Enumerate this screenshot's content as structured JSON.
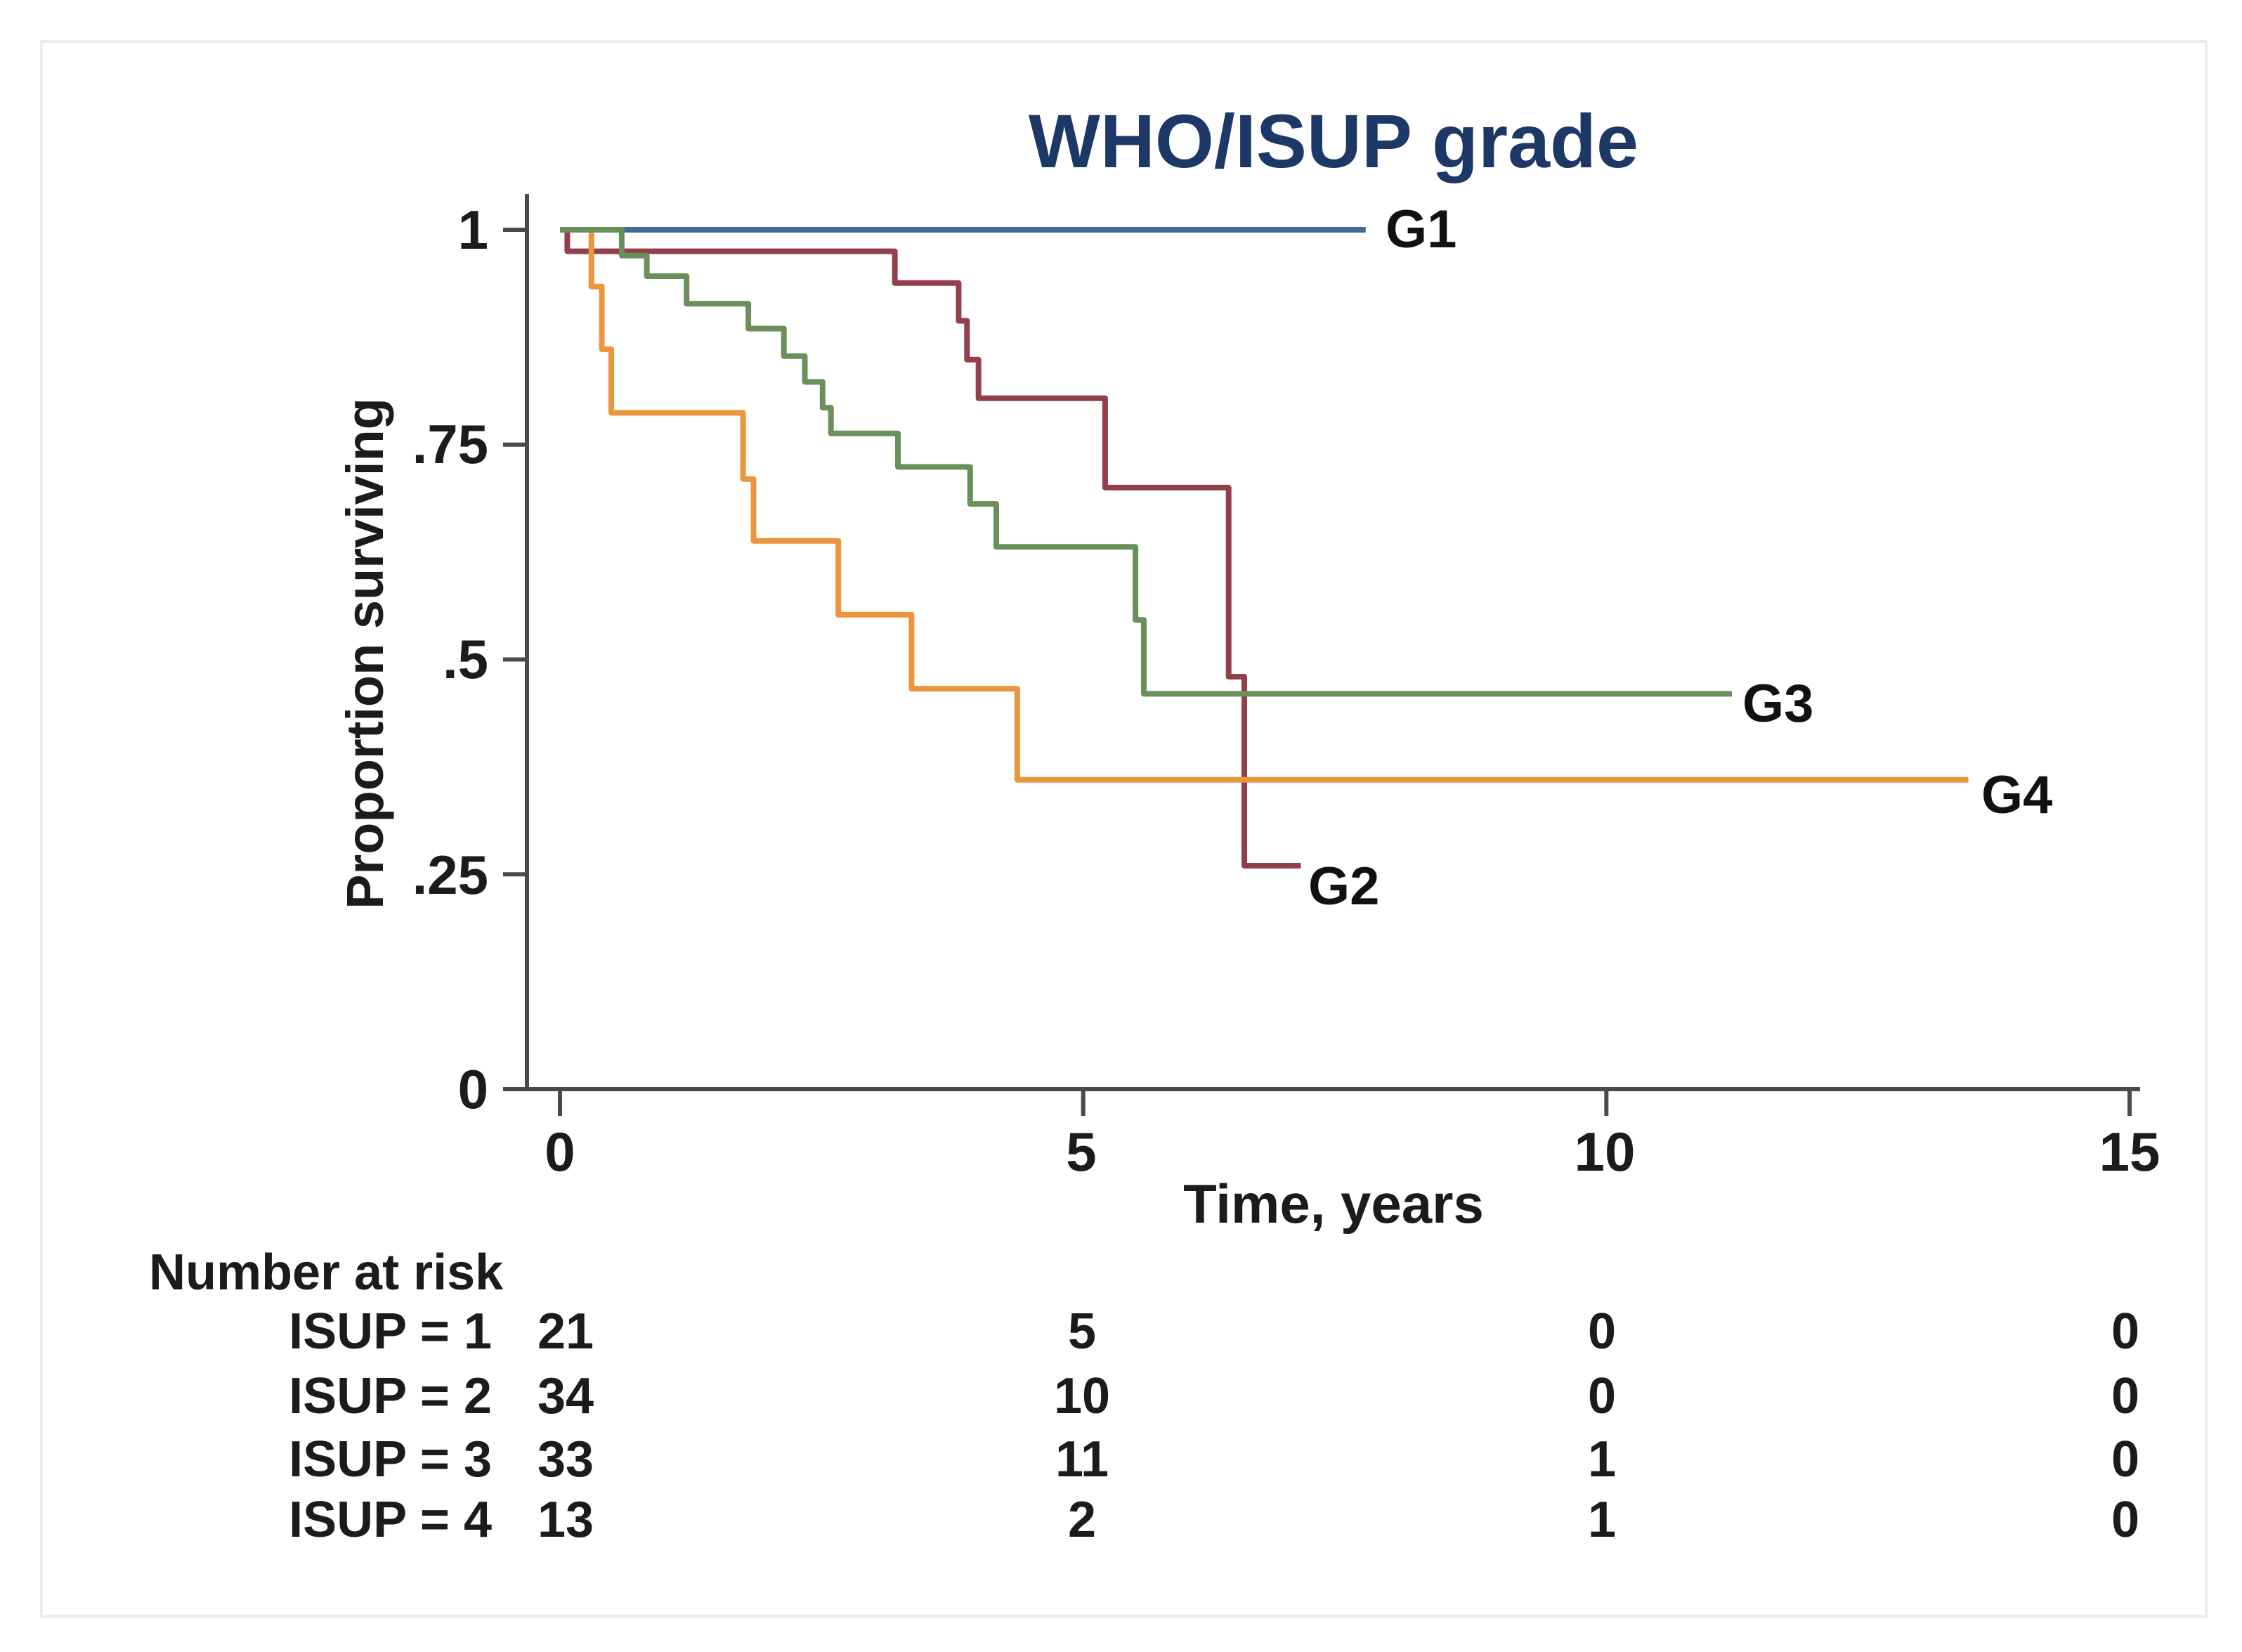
{
  "figure": {
    "background": "#ffffff",
    "frame_color": "#e8edf1",
    "axis_color": "#4a4a4a",
    "text_color": "#1b1b1b",
    "title_color": "#1d3766"
  },
  "chart_data": {
    "type": "line",
    "subtype": "kaplan-meier-step-survival",
    "title": "WHO/ISUP grade",
    "xlabel": "Time, years",
    "ylabel": "Proportion surviving",
    "xlim": [
      0,
      15
    ],
    "ylim": [
      0,
      1
    ],
    "grid": false,
    "legend_position": "end-of-line-labels",
    "x_ticks": [
      {
        "value": 0,
        "label": "0"
      },
      {
        "value": 5,
        "label": "5"
      },
      {
        "value": 10,
        "label": "10"
      },
      {
        "value": 15,
        "label": "15"
      }
    ],
    "y_ticks": [
      {
        "value": 1,
        "label": "1"
      },
      {
        "value": 0.75,
        "label": ".75"
      },
      {
        "value": 0.5,
        "label": ".5"
      },
      {
        "value": 0.25,
        "label": ".25"
      },
      {
        "value": 0,
        "label": "0"
      }
    ],
    "series": [
      {
        "name": "G1",
        "group": "WHO/ISUP grade 1",
        "color": "#3f6a93",
        "steps": [
          [
            0,
            1.0
          ],
          [
            7.7,
            1.0
          ]
        ]
      },
      {
        "name": "G2",
        "group": "WHO/ISUP grade 2",
        "color": "#933f4a",
        "steps": [
          [
            0,
            1.0
          ],
          [
            0.07,
            0.975
          ],
          [
            3.2,
            0.938
          ],
          [
            3.81,
            0.894
          ],
          [
            3.89,
            0.849
          ],
          [
            4.0,
            0.804
          ],
          [
            5.21,
            0.7
          ],
          [
            6.39,
            0.48
          ],
          [
            6.54,
            0.26
          ],
          [
            7.08,
            0.26
          ]
        ]
      },
      {
        "name": "G3",
        "group": "WHO/ISUP grade 3",
        "color": "#6b8f5a",
        "steps": [
          [
            0,
            1.0
          ],
          [
            0.59,
            0.97
          ],
          [
            0.83,
            0.946
          ],
          [
            1.21,
            0.914
          ],
          [
            1.8,
            0.885
          ],
          [
            2.14,
            0.853
          ],
          [
            2.34,
            0.823
          ],
          [
            2.51,
            0.793
          ],
          [
            2.59,
            0.763
          ],
          [
            3.23,
            0.724
          ],
          [
            3.92,
            0.681
          ],
          [
            4.17,
            0.631
          ],
          [
            5.5,
            0.546
          ],
          [
            5.58,
            0.46
          ],
          [
            11.2,
            0.46
          ]
        ]
      },
      {
        "name": "G4",
        "group": "WHO/ISUP grade 4",
        "color": "#e9963e",
        "steps": [
          [
            0,
            1.0
          ],
          [
            0.3,
            0.934
          ],
          [
            0.4,
            0.861
          ],
          [
            0.49,
            0.787
          ],
          [
            1.75,
            0.71
          ],
          [
            1.85,
            0.638
          ],
          [
            2.66,
            0.552
          ],
          [
            3.36,
            0.466
          ],
          [
            4.37,
            0.36
          ],
          [
            13.46,
            0.36
          ]
        ]
      }
    ]
  },
  "at_risk": {
    "header": "Number at risk",
    "time_points": [
      "0",
      "5",
      "10",
      "15"
    ],
    "rows": [
      {
        "label": "ISUP = 1",
        "values": [
          "21",
          "5",
          "0",
          "0"
        ]
      },
      {
        "label": "ISUP = 2",
        "values": [
          "34",
          "10",
          "0",
          "0"
        ]
      },
      {
        "label": "ISUP = 3",
        "values": [
          "33",
          "11",
          "1",
          "0"
        ]
      },
      {
        "label": "ISUP = 4",
        "values": [
          "13",
          "2",
          "1",
          "0"
        ]
      }
    ]
  }
}
